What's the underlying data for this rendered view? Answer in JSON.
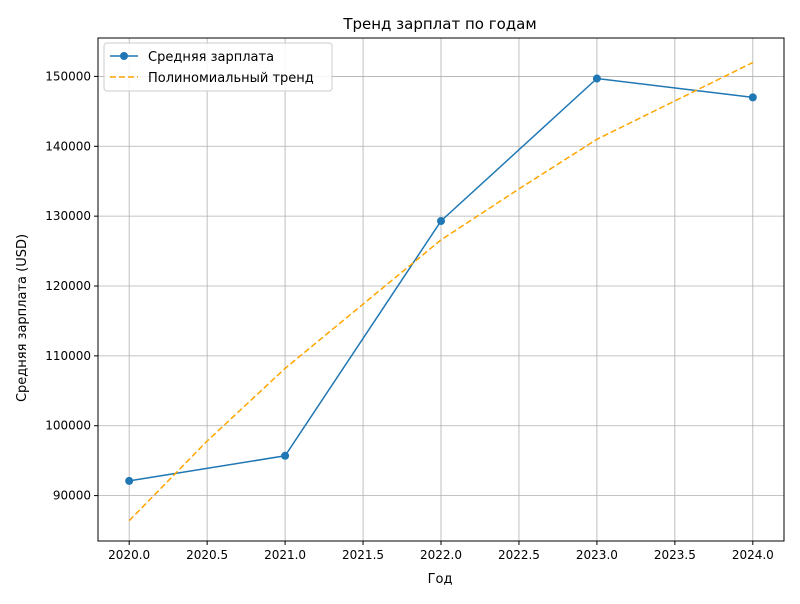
{
  "chart_data": {
    "type": "line",
    "title": "Тренд зарплат по годам",
    "xlabel": "Год",
    "ylabel": "Средняя зарплата (USD)",
    "xlim": [
      2019.8,
      2024.2
    ],
    "ylim": [
      83500,
      155500
    ],
    "xticks": [
      2020.0,
      2020.5,
      2021.0,
      2021.5,
      2022.0,
      2022.5,
      2023.0,
      2023.5,
      2024.0
    ],
    "xtick_labels": [
      "2020.0",
      "2020.5",
      "2021.0",
      "2021.5",
      "2022.0",
      "2022.5",
      "2023.0",
      "2023.5",
      "2024.0"
    ],
    "yticks": [
      90000,
      100000,
      110000,
      120000,
      130000,
      140000,
      150000
    ],
    "ytick_labels": [
      "90000",
      "100000",
      "110000",
      "120000",
      "130000",
      "140000",
      "150000"
    ],
    "grid": true,
    "legend_position": "top-left",
    "series": [
      {
        "name": "Средняя зарплата",
        "style": "solid-with-markers",
        "color": "#1f77b4",
        "x": [
          2020,
          2021,
          2022,
          2023,
          2024
        ],
        "y": [
          92100,
          95700,
          129300,
          149700,
          147000
        ]
      },
      {
        "name": "Полиномиальный тренд",
        "style": "dashed",
        "color": "#ffa500",
        "x": [
          2020,
          2020.5,
          2021,
          2021.5,
          2022,
          2022.5,
          2023,
          2023.5,
          2024
        ],
        "y": [
          86400,
          97800,
          108200,
          117400,
          126600,
          133900,
          141000,
          146500,
          152000
        ]
      }
    ]
  }
}
